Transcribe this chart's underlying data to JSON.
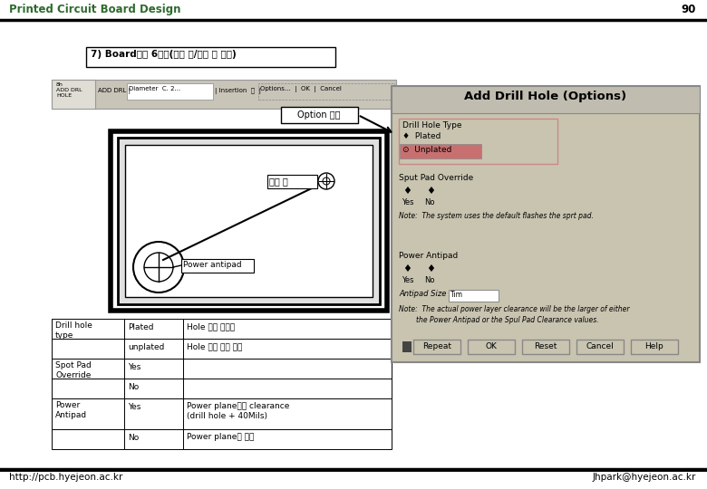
{
  "title": "Printed Circuit Board Design",
  "page_num": "90",
  "header_color": "#2d6a2d",
  "bg_color": "#ffffff",
  "footer_left": "http://pcb.hyejeon.ac.kr",
  "footer_right": "Jhpark@hyejeon.ac.kr",
  "step_title": "7) Board작성 6단계(기구 홀/고정 홀 추가)",
  "option_label": "Option 선택",
  "dialog_title": "Add Drill Hole (Options)",
  "drill_hole_type": "Drill Hole Type",
  "plated_label": "Plated",
  "unplated_label": "Unplated",
  "sput_pad": "Sput Pad Override",
  "power_antipad": "Power Antipad",
  "antipad_size": "Antipad Size",
  "note1": "Note:  The system uses the default flashes the sprt pad.",
  "note2": "Note:  The actual power layer clearance will be the larger of either\n        the Power Antipad or the Spul Pad Clearance values.",
  "buttons": [
    "Repeat",
    "OK",
    "Reset",
    "Cancel",
    "Help"
  ],
  "table_rows": [
    {
      "col0": "Drill hole\ntype",
      "col1": "Plated",
      "col2": "Hole 내벽 도금함",
      "merge0": true
    },
    {
      "col0": "",
      "col1": "unplated",
      "col2": "Hole 내벽 도금 안함",
      "merge0": false
    },
    {
      "col0": "Spot Pad\nOverride",
      "col1": "Yes",
      "col2": "",
      "merge0": true
    },
    {
      "col0": "",
      "col1": "No",
      "col2": "",
      "merge0": false
    },
    {
      "col0": "Power\nAntipad",
      "col1": "Yes",
      "col2": "Power plane과의 clearance\n(drill hole + 40Mils)",
      "merge0": true
    },
    {
      "col0": "",
      "col1": "No",
      "col2": "Power plane과 연결",
      "merge0": false
    }
  ],
  "pcb_label1": "기구 홀",
  "pcb_label2": "Power antipad",
  "toolbar_bg": "#c8c4b8",
  "dialog_bg": "#c8c4b0",
  "dialog_inner_bg": "#c8c4b0"
}
